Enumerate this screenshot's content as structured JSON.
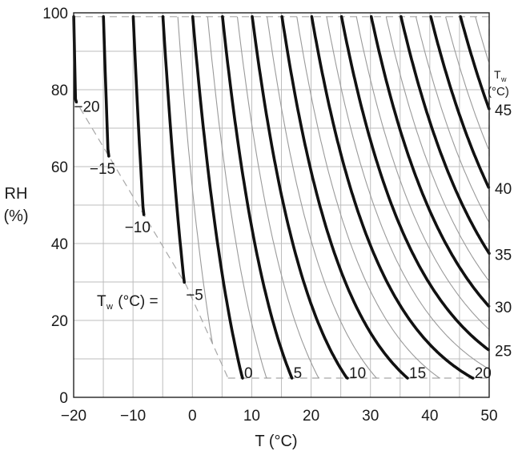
{
  "chart_data": {
    "type": "line",
    "title": "",
    "xlabel": "T (°C)",
    "ylabel_line1": "RH",
    "ylabel_line2": "(%)",
    "xlim": [
      -20,
      50
    ],
    "ylim": [
      0,
      100
    ],
    "x_ticks": [
      "−20",
      "−10",
      "0",
      "10",
      "20",
      "30",
      "40",
      "50"
    ],
    "y_ticks": [
      "0",
      "20",
      "40",
      "60",
      "80",
      "100"
    ],
    "grid": true,
    "legend_title_line1": "T",
    "legend_title_sub": "w",
    "legend_title_line2": "(°C)",
    "series_prefix": "T",
    "series_prefix_sub": "w",
    "series_prefix_rest": " (°C) = ",
    "major_curves": [
      {
        "label": "−20",
        "tw": -20
      },
      {
        "label": "−15",
        "tw": -15
      },
      {
        "label": "−10",
        "tw": -10
      },
      {
        "label": "−5",
        "tw": -5
      },
      {
        "label": "0",
        "tw": 0
      },
      {
        "label": "5",
        "tw": 5
      },
      {
        "label": "10",
        "tw": 10
      },
      {
        "label": "15",
        "tw": 15
      },
      {
        "label": "20",
        "tw": 20
      },
      {
        "label": "25",
        "tw": 25
      },
      {
        "label": "30",
        "tw": 30
      },
      {
        "label": "35",
        "tw": 35
      },
      {
        "label": "40",
        "tw": 40
      },
      {
        "label": "45",
        "tw": 45
      }
    ],
    "minor_curves_tw": [
      -2.5,
      2.5,
      7.5,
      12.5,
      17.5,
      22.5,
      27.5,
      32.5,
      37.5,
      42.5,
      47.5
    ],
    "boundary_dashed": {
      "top_rh": 99,
      "bottom_rh": 5,
      "right_t": 50,
      "diagonal": [
        [
          -20,
          78
        ],
        [
          -1,
          29
        ],
        [
          6,
          5
        ]
      ]
    },
    "colors": {
      "major": "#111111",
      "minor": "#9a9a9a",
      "grid": "#bdbdbd",
      "dashed": "#a8a8a8"
    }
  }
}
